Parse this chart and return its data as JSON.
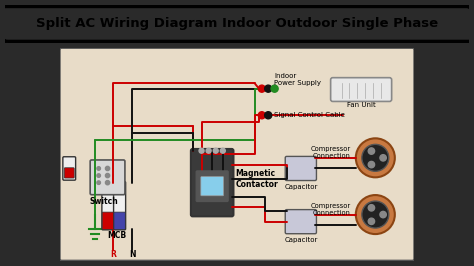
{
  "title": "Split AC Wiring Diagram Indoor Outdoor Single Phase",
  "title_bg": "#FFFF00",
  "title_border": "#000000",
  "bg_color": "#E8DCC8",
  "outer_bg": "#2a2a2a",
  "labels": {
    "switch": "Switch",
    "mcb": "MCB",
    "magnetic_contactor": "Magnetic\nContactor",
    "indoor_power_supply": "Indoor\nPower Supply",
    "fan_unit": "Fan Unit",
    "signal_control_cable": "Signal Control Cable",
    "compressor_connection_top": "Compressor\nConnection",
    "compressor_connection_bot": "Compressor\nConnection",
    "capacitor_top": "Capacitor",
    "capacitor_bot": "Capacitor",
    "R": "R",
    "N": "N"
  },
  "wire_colors": {
    "red": "#CC0000",
    "black": "#111111",
    "green": "#228B22",
    "brown": "#8B4513"
  }
}
